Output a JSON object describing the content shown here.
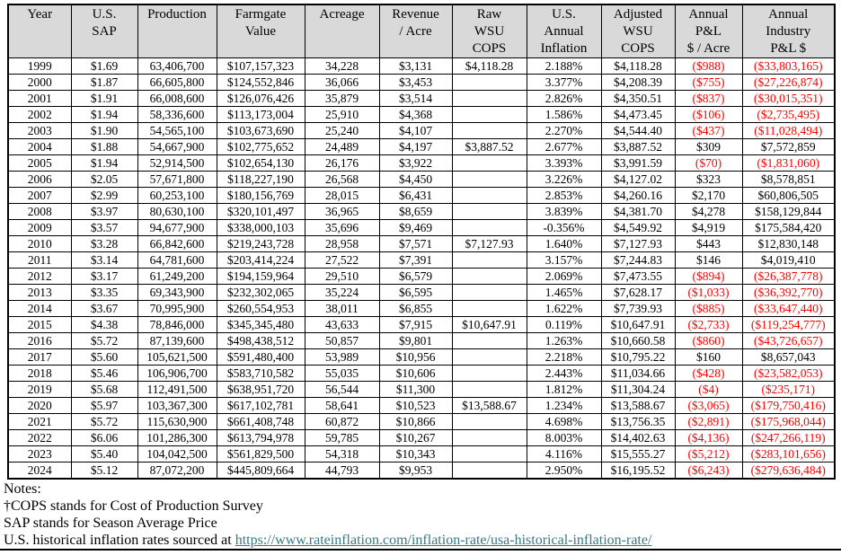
{
  "colors": {
    "header_bg": "#d9d9d9",
    "negative_text": "#ff0000",
    "link_text": "#39788a",
    "border": "#000000"
  },
  "table": {
    "headers": [
      "Year",
      "U.S.\nSAP",
      "Production",
      "Farmgate\nValue",
      "Acreage",
      "Revenue\n/ Acre",
      "Raw\nWSU\nCOPS",
      "U.S.\nAnnual\nInflation",
      "Adjusted\nWSU\nCOPS",
      "Annual\nP&L\n$ / Acre",
      "Annual\nIndustry\nP&L $"
    ],
    "rows": [
      [
        "1999",
        "$1.69",
        "63,406,700",
        "$107,157,323",
        "34,228",
        "$3,131",
        "$4,118.28",
        "2.188%",
        "$4,118.28",
        "($988)",
        "($33,803,165)"
      ],
      [
        "2000",
        "$1.87",
        "66,605,800",
        "$124,552,846",
        "36,066",
        "$3,453",
        "",
        "3.377%",
        "$4,208.39",
        "($755)",
        "($27,226,874)"
      ],
      [
        "2001",
        "$1.91",
        "66,008,600",
        "$126,076,426",
        "35,879",
        "$3,514",
        "",
        "2.826%",
        "$4,350.51",
        "($837)",
        "($30,015,351)"
      ],
      [
        "2002",
        "$1.94",
        "58,336,600",
        "$113,173,004",
        "25,910",
        "$4,368",
        "",
        "1.586%",
        "$4,473.45",
        "($106)",
        "($2,735,495)"
      ],
      [
        "2003",
        "$1.90",
        "54,565,100",
        "$103,673,690",
        "25,240",
        "$4,107",
        "",
        "2.270%",
        "$4,544.40",
        "($437)",
        "($11,028,494)"
      ],
      [
        "2004",
        "$1.88",
        "54,667,900",
        "$102,775,652",
        "24,489",
        "$4,197",
        "$3,887.52",
        "2.677%",
        "$3,887.52",
        "$309",
        "$7,572,859"
      ],
      [
        "2005",
        "$1.94",
        "52,914,500",
        "$102,654,130",
        "26,176",
        "$3,922",
        "",
        "3.393%",
        "$3,991.59",
        "($70)",
        "($1,831,060)"
      ],
      [
        "2006",
        "$2.05",
        "57,671,800",
        "$118,227,190",
        "26,568",
        "$4,450",
        "",
        "3.226%",
        "$4,127.02",
        "$323",
        "$8,578,851"
      ],
      [
        "2007",
        "$2.99",
        "60,253,100",
        "$180,156,769",
        "28,015",
        "$6,431",
        "",
        "2.853%",
        "$4,260.16",
        "$2,170",
        "$60,806,505"
      ],
      [
        "2008",
        "$3.97",
        "80,630,100",
        "$320,101,497",
        "36,965",
        "$8,659",
        "",
        "3.839%",
        "$4,381.70",
        "$4,278",
        "$158,129,844"
      ],
      [
        "2009",
        "$3.57",
        "94,677,900",
        "$338,000,103",
        "35,696",
        "$9,469",
        "",
        "-0.356%",
        "$4,549.92",
        "$4,919",
        "$175,584,420"
      ],
      [
        "2010",
        "$3.28",
        "66,842,600",
        "$219,243,728",
        "28,958",
        "$7,571",
        "$7,127.93",
        "1.640%",
        "$7,127.93",
        "$443",
        "$12,830,148"
      ],
      [
        "2011",
        "$3.14",
        "64,781,600",
        "$203,414,224",
        "27,522",
        "$7,391",
        "",
        "3.157%",
        "$7,244.83",
        "$146",
        "$4,019,410"
      ],
      [
        "2012",
        "$3.17",
        "61,249,200",
        "$194,159,964",
        "29,510",
        "$6,579",
        "",
        "2.069%",
        "$7,473.55",
        "($894)",
        "($26,387,778)"
      ],
      [
        "2013",
        "$3.35",
        "69,343,900",
        "$232,302,065",
        "35,224",
        "$6,595",
        "",
        "1.465%",
        "$7,628.17",
        "($1,033)",
        "($36,392,770)"
      ],
      [
        "2014",
        "$3.67",
        "70,995,900",
        "$260,554,953",
        "38,011",
        "$6,855",
        "",
        "1.622%",
        "$7,739.93",
        "($885)",
        "($33,647,440)"
      ],
      [
        "2015",
        "$4.38",
        "78,846,000",
        "$345,345,480",
        "43,633",
        "$7,915",
        "$10,647.91",
        "0.119%",
        "$10,647.91",
        "($2,733)",
        "($119,254,777)"
      ],
      [
        "2016",
        "$5.72",
        "87,139,600",
        "$498,438,512",
        "50,857",
        "$9,801",
        "",
        "1.263%",
        "$10,660.58",
        "($860)",
        "($43,726,657)"
      ],
      [
        "2017",
        "$5.60",
        "105,621,500",
        "$591,480,400",
        "53,989",
        "$10,956",
        "",
        "2.218%",
        "$10,795.22",
        "$160",
        "$8,657,043"
      ],
      [
        "2018",
        "$5.46",
        "106,906,700",
        "$583,710,582",
        "55,035",
        "$10,606",
        "",
        "2.443%",
        "$11,034.66",
        "($428)",
        "($23,582,053)"
      ],
      [
        "2019",
        "$5.68",
        "112,491,500",
        "$638,951,720",
        "56,544",
        "$11,300",
        "",
        "1.812%",
        "$11,304.24",
        "($4)",
        "($235,171)"
      ],
      [
        "2020",
        "$5.97",
        "103,367,300",
        "$617,102,781",
        "58,641",
        "$10,523",
        "$13,588.67",
        "1.234%",
        "$13,588.67",
        "($3,065)",
        "($179,750,416)"
      ],
      [
        "2021",
        "$5.72",
        "115,630,900",
        "$661,408,748",
        "60,872",
        "$10,866",
        "",
        "4.698%",
        "$13,756.35",
        "($2,891)",
        "($175,968,044)"
      ],
      [
        "2022",
        "$6.06",
        "101,286,300",
        "$613,794,978",
        "59,785",
        "$10,267",
        "",
        "8.003%",
        "$14,402.63",
        "($4,136)",
        "($247,266,119)"
      ],
      [
        "2023",
        "$5.40",
        "104,042,500",
        "$561,829,500",
        "54,318",
        "$10,343",
        "",
        "4.116%",
        "$15,555.27",
        "($5,212)",
        "($283,101,656)"
      ],
      [
        "2024",
        "$5.12",
        "87,072,200",
        "$445,809,664",
        "44,793",
        "$9,953",
        "",
        "2.950%",
        "$16,195.52",
        "($6,243)",
        "($279,636,484)"
      ]
    ]
  },
  "notes": {
    "heading": "Notes:",
    "cops_note": "†COPS stands for Cost of Production Survey",
    "sap_note": "SAP stands for Season Average Price",
    "inflation_prefix": "U.S. historical inflation rates sourced at ",
    "link_text": "https://www.rateinflation.com/inflation-rate/usa-historical-inflation-rate/",
    "link_href": "https://www.rateinflation.com/inflation-rate/usa-historical-inflation-rate/"
  }
}
